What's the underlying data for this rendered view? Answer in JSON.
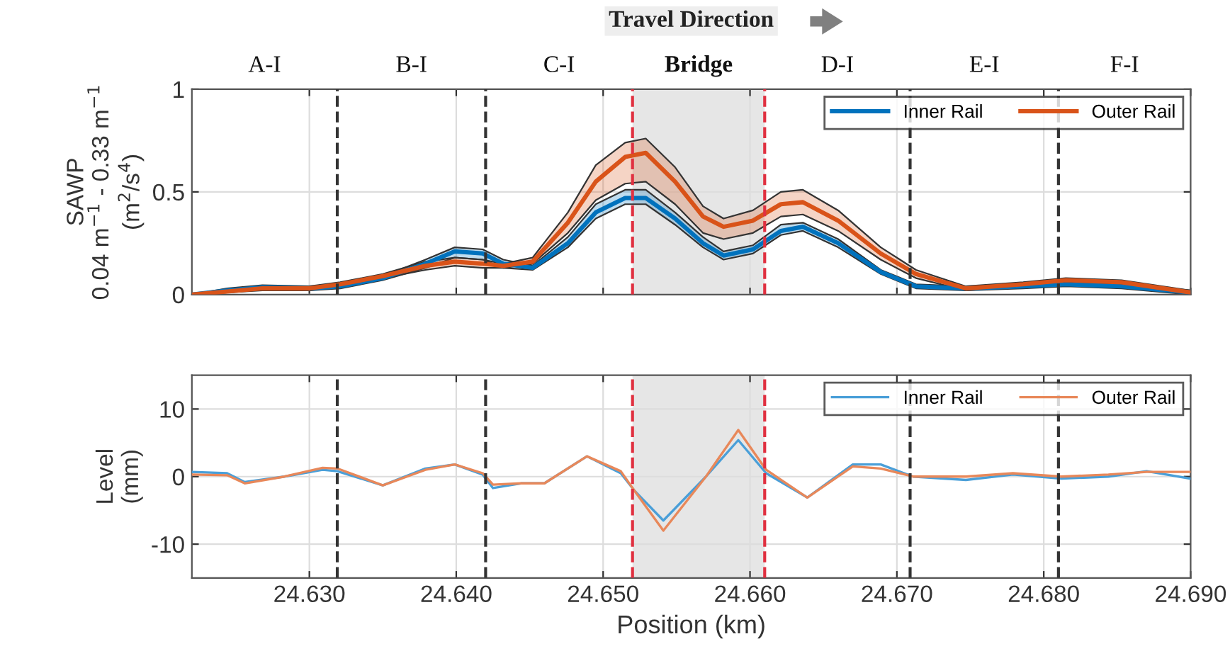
{
  "chart_data": [
    {
      "type": "line",
      "title": "Travel Direction",
      "ylabel": "SAWP\n0.04 m$^{−1}$ - 0.33 m$^{−1}$\n(m$^{2}$/s$^{4}$)",
      "annotations": [
        "A-I",
        "B-I",
        "C-I",
        "Bridge",
        "D-I",
        "E-I",
        "F-I"
      ],
      "x": [
        24.622,
        24.6244,
        24.6268,
        24.63,
        24.6321,
        24.635,
        24.6379,
        24.6399,
        24.6418,
        24.6432,
        24.6452,
        24.6476,
        24.6495,
        24.6515,
        24.6529,
        24.6549,
        24.6568,
        24.6582,
        24.6602,
        24.6621,
        24.6636,
        24.666,
        24.6689,
        24.6713,
        24.6747,
        24.6786,
        24.6815,
        24.6853,
        24.69
      ],
      "series": [
        {
          "name": "Inner Rail",
          "color": "#0072bd",
          "values": [
            0.0,
            0.02,
            0.035,
            0.03,
            0.04,
            0.08,
            0.15,
            0.21,
            0.2,
            0.15,
            0.13,
            0.25,
            0.4,
            0.47,
            0.47,
            0.37,
            0.25,
            0.19,
            0.22,
            0.31,
            0.33,
            0.25,
            0.11,
            0.04,
            0.03,
            0.04,
            0.05,
            0.04,
            0.01
          ],
          "lower": [
            0,
            0.01,
            0.025,
            0.02,
            0.03,
            0.07,
            0.13,
            0.18,
            0.17,
            0.13,
            0.12,
            0.23,
            0.37,
            0.44,
            0.44,
            0.34,
            0.23,
            0.17,
            0.2,
            0.29,
            0.31,
            0.23,
            0.1,
            0.03,
            0.02,
            0.03,
            0.04,
            0.03,
            0
          ],
          "upper": [
            0,
            0.03,
            0.045,
            0.04,
            0.05,
            0.09,
            0.17,
            0.23,
            0.22,
            0.17,
            0.14,
            0.28,
            0.44,
            0.51,
            0.51,
            0.4,
            0.28,
            0.21,
            0.24,
            0.34,
            0.35,
            0.27,
            0.12,
            0.05,
            0.04,
            0.05,
            0.06,
            0.05,
            0.02
          ]
        },
        {
          "name": "Outer Rail",
          "color": "#d95319",
          "values": [
            0.0,
            0.015,
            0.03,
            0.03,
            0.05,
            0.09,
            0.14,
            0.16,
            0.15,
            0.14,
            0.16,
            0.35,
            0.55,
            0.67,
            0.69,
            0.55,
            0.38,
            0.33,
            0.36,
            0.44,
            0.45,
            0.36,
            0.2,
            0.1,
            0.03,
            0.05,
            0.07,
            0.06,
            0.01
          ],
          "lower": [
            0,
            0.01,
            0.02,
            0.02,
            0.04,
            0.08,
            0.12,
            0.14,
            0.13,
            0.13,
            0.15,
            0.3,
            0.46,
            0.54,
            0.55,
            0.44,
            0.3,
            0.27,
            0.3,
            0.38,
            0.39,
            0.31,
            0.17,
            0.08,
            0.02,
            0.04,
            0.06,
            0.05,
            0
          ],
          "upper": [
            0,
            0.02,
            0.04,
            0.04,
            0.06,
            0.1,
            0.16,
            0.18,
            0.17,
            0.15,
            0.18,
            0.4,
            0.63,
            0.74,
            0.76,
            0.62,
            0.43,
            0.37,
            0.41,
            0.5,
            0.51,
            0.41,
            0.23,
            0.12,
            0.04,
            0.06,
            0.08,
            0.07,
            0.02
          ]
        }
      ],
      "xlim": [
        24.622,
        24.69
      ],
      "xticks": [
        24.63,
        24.64,
        24.65,
        24.66,
        24.67,
        24.68,
        24.69
      ],
      "ylim": [
        0,
        1
      ],
      "yticks": [
        0,
        0.5,
        1
      ],
      "tick_labels": "y",
      "grid": true,
      "legend": "top right",
      "line_style": "solid",
      "ref_lines": [
        {
          "axis": "x",
          "value": 24.6319,
          "color": "#333333",
          "line_style": "dashed"
        },
        {
          "axis": "x",
          "value": 24.642,
          "color": "#333333",
          "line_style": "dashed"
        },
        {
          "axis": "x",
          "value": 24.652,
          "color": "#e03040",
          "line_style": "dashed"
        },
        {
          "axis": "x",
          "value": 24.661,
          "color": "#e03040",
          "line_style": "dashed"
        },
        {
          "axis": "x",
          "value": 24.6709,
          "color": "#333333",
          "line_style": "dashed"
        },
        {
          "axis": "x",
          "value": 24.681,
          "color": "#333333",
          "line_style": "dashed"
        }
      ],
      "bands": [
        {
          "axis": "x",
          "from": 24.652,
          "to": 24.661,
          "color": "#e6e6e6"
        }
      ]
    },
    {
      "type": "line",
      "xlabel": "Position (km)",
      "ylabel": "Level\n(mm)",
      "x": [
        24.622,
        24.6244,
        24.6256,
        24.6283,
        24.6309,
        24.6319,
        24.635,
        24.6379,
        24.6399,
        24.6418,
        24.6425,
        24.6444,
        24.646,
        24.6489,
        24.6512,
        24.6521,
        24.6541,
        24.657,
        24.6592,
        24.6611,
        24.6639,
        24.667,
        24.6689,
        24.6711,
        24.6747,
        24.6779,
        24.6812,
        24.6844,
        24.687,
        24.69
      ],
      "series": [
        {
          "name": "Inner Rail",
          "color": "#4a9fd8",
          "values": [
            0.7,
            0.5,
            -0.8,
            0,
            1.0,
            0.8,
            -1.3,
            1.2,
            1.8,
            0.3,
            -1.7,
            -1.0,
            -1.0,
            3.0,
            0.5,
            -2.0,
            -6.5,
            0,
            5.4,
            0.5,
            -3.1,
            1.8,
            1.8,
            0,
            -0.5,
            0.3,
            -0.3,
            0,
            0.8,
            -0.3
          ]
        },
        {
          "name": "Outer Rail",
          "color": "#e8885a",
          "values": [
            0.3,
            0.2,
            -1.0,
            0,
            1.3,
            1.2,
            -1.3,
            1.0,
            1.8,
            0.5,
            -1.2,
            -1.0,
            -1.0,
            3.0,
            0.8,
            -2.0,
            -8.0,
            0,
            6.9,
            1.0,
            -3.1,
            1.5,
            1.2,
            0,
            0,
            0.5,
            0,
            0.3,
            0.7,
            0.7
          ]
        }
      ],
      "xlim": [
        24.622,
        24.69
      ],
      "xticks": [
        {
          "value": 24.63,
          "label": "24.630"
        },
        {
          "value": 24.64,
          "label": "24.640"
        },
        {
          "value": 24.65,
          "label": "24.650"
        },
        {
          "value": 24.66,
          "label": "24.660"
        },
        {
          "value": 24.67,
          "label": "24.670"
        },
        {
          "value": 24.68,
          "label": "24.680"
        },
        {
          "value": 24.69,
          "label": "24.690"
        }
      ],
      "ylim": [
        -15,
        15
      ],
      "yticks": [
        -10,
        0,
        10
      ],
      "grid": true,
      "legend": "top right",
      "line_style": "solid",
      "ref_lines": [
        {
          "axis": "x",
          "value": 24.6319,
          "color": "#333333",
          "line_style": "dashed"
        },
        {
          "axis": "x",
          "value": 24.642,
          "color": "#333333",
          "line_style": "dashed"
        },
        {
          "axis": "x",
          "value": 24.652,
          "color": "#e03040",
          "line_style": "dashed"
        },
        {
          "axis": "x",
          "value": 24.661,
          "color": "#e03040",
          "line_style": "dashed"
        },
        {
          "axis": "x",
          "value": 24.6709,
          "color": "#333333",
          "line_style": "dashed"
        },
        {
          "axis": "x",
          "value": 24.681,
          "color": "#333333",
          "line_style": "dashed"
        }
      ],
      "bands": [
        {
          "axis": "x",
          "from": 24.652,
          "to": 24.661,
          "color": "#e6e6e6"
        }
      ]
    }
  ]
}
